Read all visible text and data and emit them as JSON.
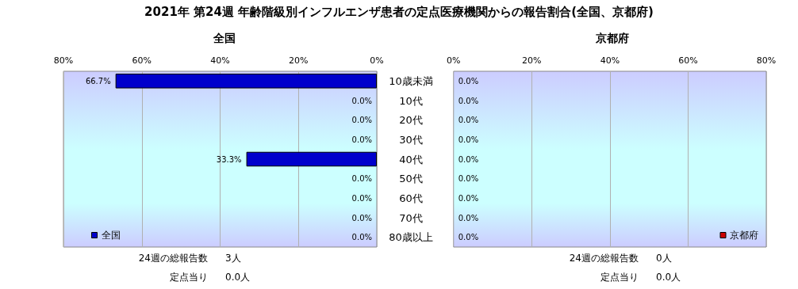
{
  "chart_data": [
    {
      "type": "bar",
      "orientation": "horizontal",
      "title": "2021年 第24週 年齢階級別インフルエンザ患者の定点医療機関からの報告割合(全国、京都府)",
      "subtitle": "全国",
      "categories": [
        "10歳未満",
        "10代",
        "20代",
        "30代",
        "40代",
        "50代",
        "60代",
        "70代",
        "80歳以上"
      ],
      "series": [
        {
          "name": "全国",
          "color": "#0000cc",
          "values": [
            66.7,
            0,
            0,
            0,
            33.3,
            0,
            0,
            0,
            0
          ],
          "value_labels": [
            "66.7%",
            "0.0%",
            "0.0%",
            "0.0%",
            "33.3%",
            "0.0%",
            "0.0%",
            "0.0%",
            "0.0%"
          ]
        }
      ],
      "xlim": [
        80,
        0
      ],
      "xticks": [
        {
          "value": 80,
          "label": "80%"
        },
        {
          "value": 60,
          "label": "60%"
        },
        {
          "value": 40,
          "label": "40%"
        },
        {
          "value": 20,
          "label": "20%"
        },
        {
          "value": 0,
          "label": "0%"
        }
      ],
      "grid": "x",
      "legend": "bottom left",
      "annotations": [
        "24週の総報告数",
        "3人",
        "定点当り",
        "0.0人"
      ]
    },
    {
      "type": "bar",
      "orientation": "horizontal",
      "subtitle": "京都府",
      "categories": [
        null,
        null,
        null,
        null,
        null,
        null,
        null,
        null,
        null
      ],
      "series": [
        {
          "name": "京都府",
          "color": "#cc0000",
          "values": [
            0,
            0,
            0,
            0,
            0,
            0,
            0,
            0,
            0
          ],
          "value_labels": [
            "0.0%",
            "0.0%",
            "0.0%",
            "0.0%",
            "0.0%",
            "0.0%",
            "0.0%",
            "0.0%",
            "0.0%"
          ]
        }
      ],
      "xlim": [
        0,
        80
      ],
      "xticks": [
        {
          "value": 0,
          "label": "0%"
        },
        {
          "value": 20,
          "label": "20%"
        },
        {
          "value": 40,
          "label": "40%"
        },
        {
          "value": 60,
          "label": "60%"
        },
        {
          "value": 80,
          "label": "80%"
        }
      ],
      "grid": "x",
      "legend": "bottom right",
      "tick_labels": "x",
      "annotations": [
        "24週の総報告数",
        "0人",
        "定点当り",
        "0.0人"
      ]
    }
  ]
}
